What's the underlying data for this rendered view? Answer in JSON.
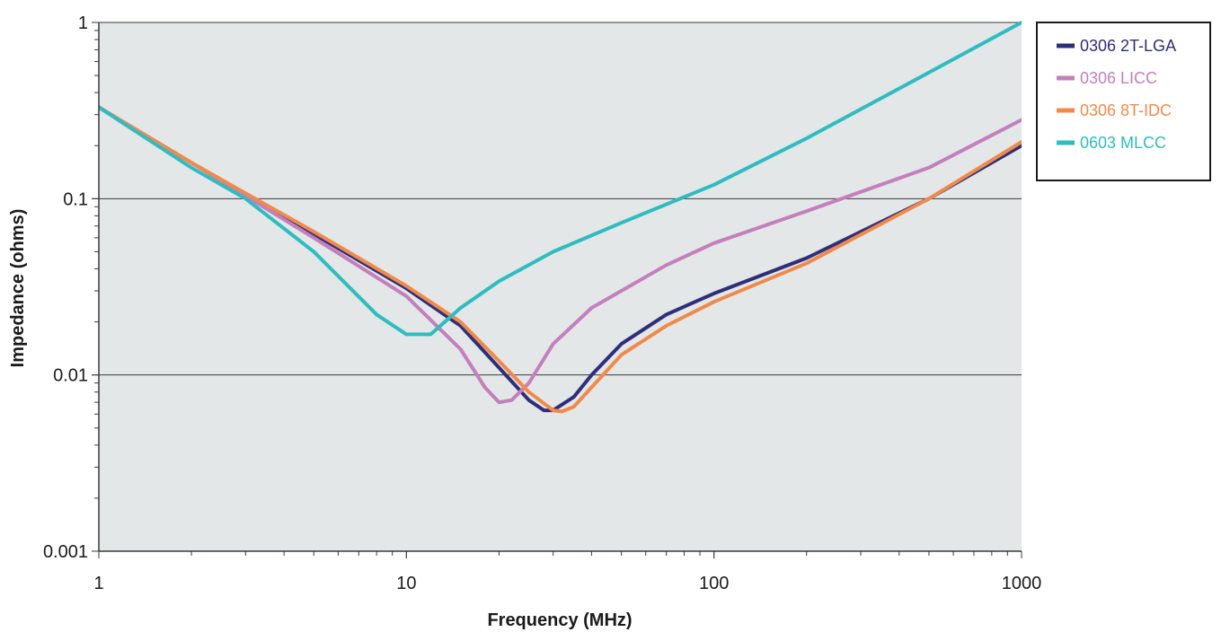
{
  "chart_data": {
    "type": "line",
    "title": "",
    "xlabel": "Frequency (MHz)",
    "ylabel": "Impedance (ohms)",
    "x_scale": "log",
    "y_scale": "log",
    "xlim": [
      1,
      1000
    ],
    "ylim": [
      0.001,
      1
    ],
    "x_ticks": [
      {
        "value": 1,
        "label": "1"
      },
      {
        "value": 10,
        "label": "10"
      },
      {
        "value": 100,
        "label": "100"
      },
      {
        "value": 1000,
        "label": "1000"
      }
    ],
    "y_ticks": [
      {
        "value": 0.001,
        "label": "0.001"
      },
      {
        "value": 0.01,
        "label": "0.01"
      },
      {
        "value": 0.1,
        "label": "0.1"
      },
      {
        "value": 1,
        "label": "1"
      }
    ],
    "grid": "horizontal",
    "plot_background": "#e3e7e7",
    "legend_position": "right",
    "series": [
      {
        "name": "0306 2T-LGA",
        "color": "#2e2e7a",
        "x": [
          1,
          2,
          5,
          10,
          15,
          20,
          25,
          28,
          30,
          35,
          40,
          50,
          70,
          100,
          200,
          500,
          1000
        ],
        "y": [
          0.33,
          0.16,
          0.063,
          0.031,
          0.019,
          0.011,
          0.0072,
          0.0063,
          0.0063,
          0.0075,
          0.01,
          0.015,
          0.022,
          0.029,
          0.046,
          0.1,
          0.2
        ]
      },
      {
        "name": "0306 LICC",
        "color": "#c47fbd",
        "x": [
          1,
          2,
          5,
          10,
          15,
          18,
          20,
          22,
          25,
          30,
          40,
          50,
          70,
          100,
          200,
          500,
          1000
        ],
        "y": [
          0.33,
          0.16,
          0.06,
          0.028,
          0.014,
          0.0085,
          0.007,
          0.0072,
          0.009,
          0.015,
          0.024,
          0.03,
          0.042,
          0.056,
          0.085,
          0.15,
          0.28
        ]
      },
      {
        "name": "0306 8T-IDC",
        "color": "#f08a4b",
        "x": [
          1,
          2,
          5,
          10,
          15,
          20,
          25,
          30,
          32,
          35,
          40,
          50,
          70,
          100,
          200,
          500,
          1000
        ],
        "y": [
          0.33,
          0.16,
          0.065,
          0.032,
          0.02,
          0.012,
          0.008,
          0.0063,
          0.0062,
          0.0066,
          0.0085,
          0.013,
          0.019,
          0.026,
          0.043,
          0.1,
          0.21
        ]
      },
      {
        "name": "0603 MLCC",
        "color": "#2fbcc0",
        "x": [
          1,
          2,
          3,
          5,
          8,
          10,
          12,
          15,
          20,
          30,
          50,
          100,
          200,
          500,
          1000
        ],
        "y": [
          0.33,
          0.15,
          0.1,
          0.05,
          0.022,
          0.017,
          0.017,
          0.024,
          0.034,
          0.05,
          0.073,
          0.12,
          0.22,
          0.52,
          1.0
        ]
      }
    ]
  }
}
